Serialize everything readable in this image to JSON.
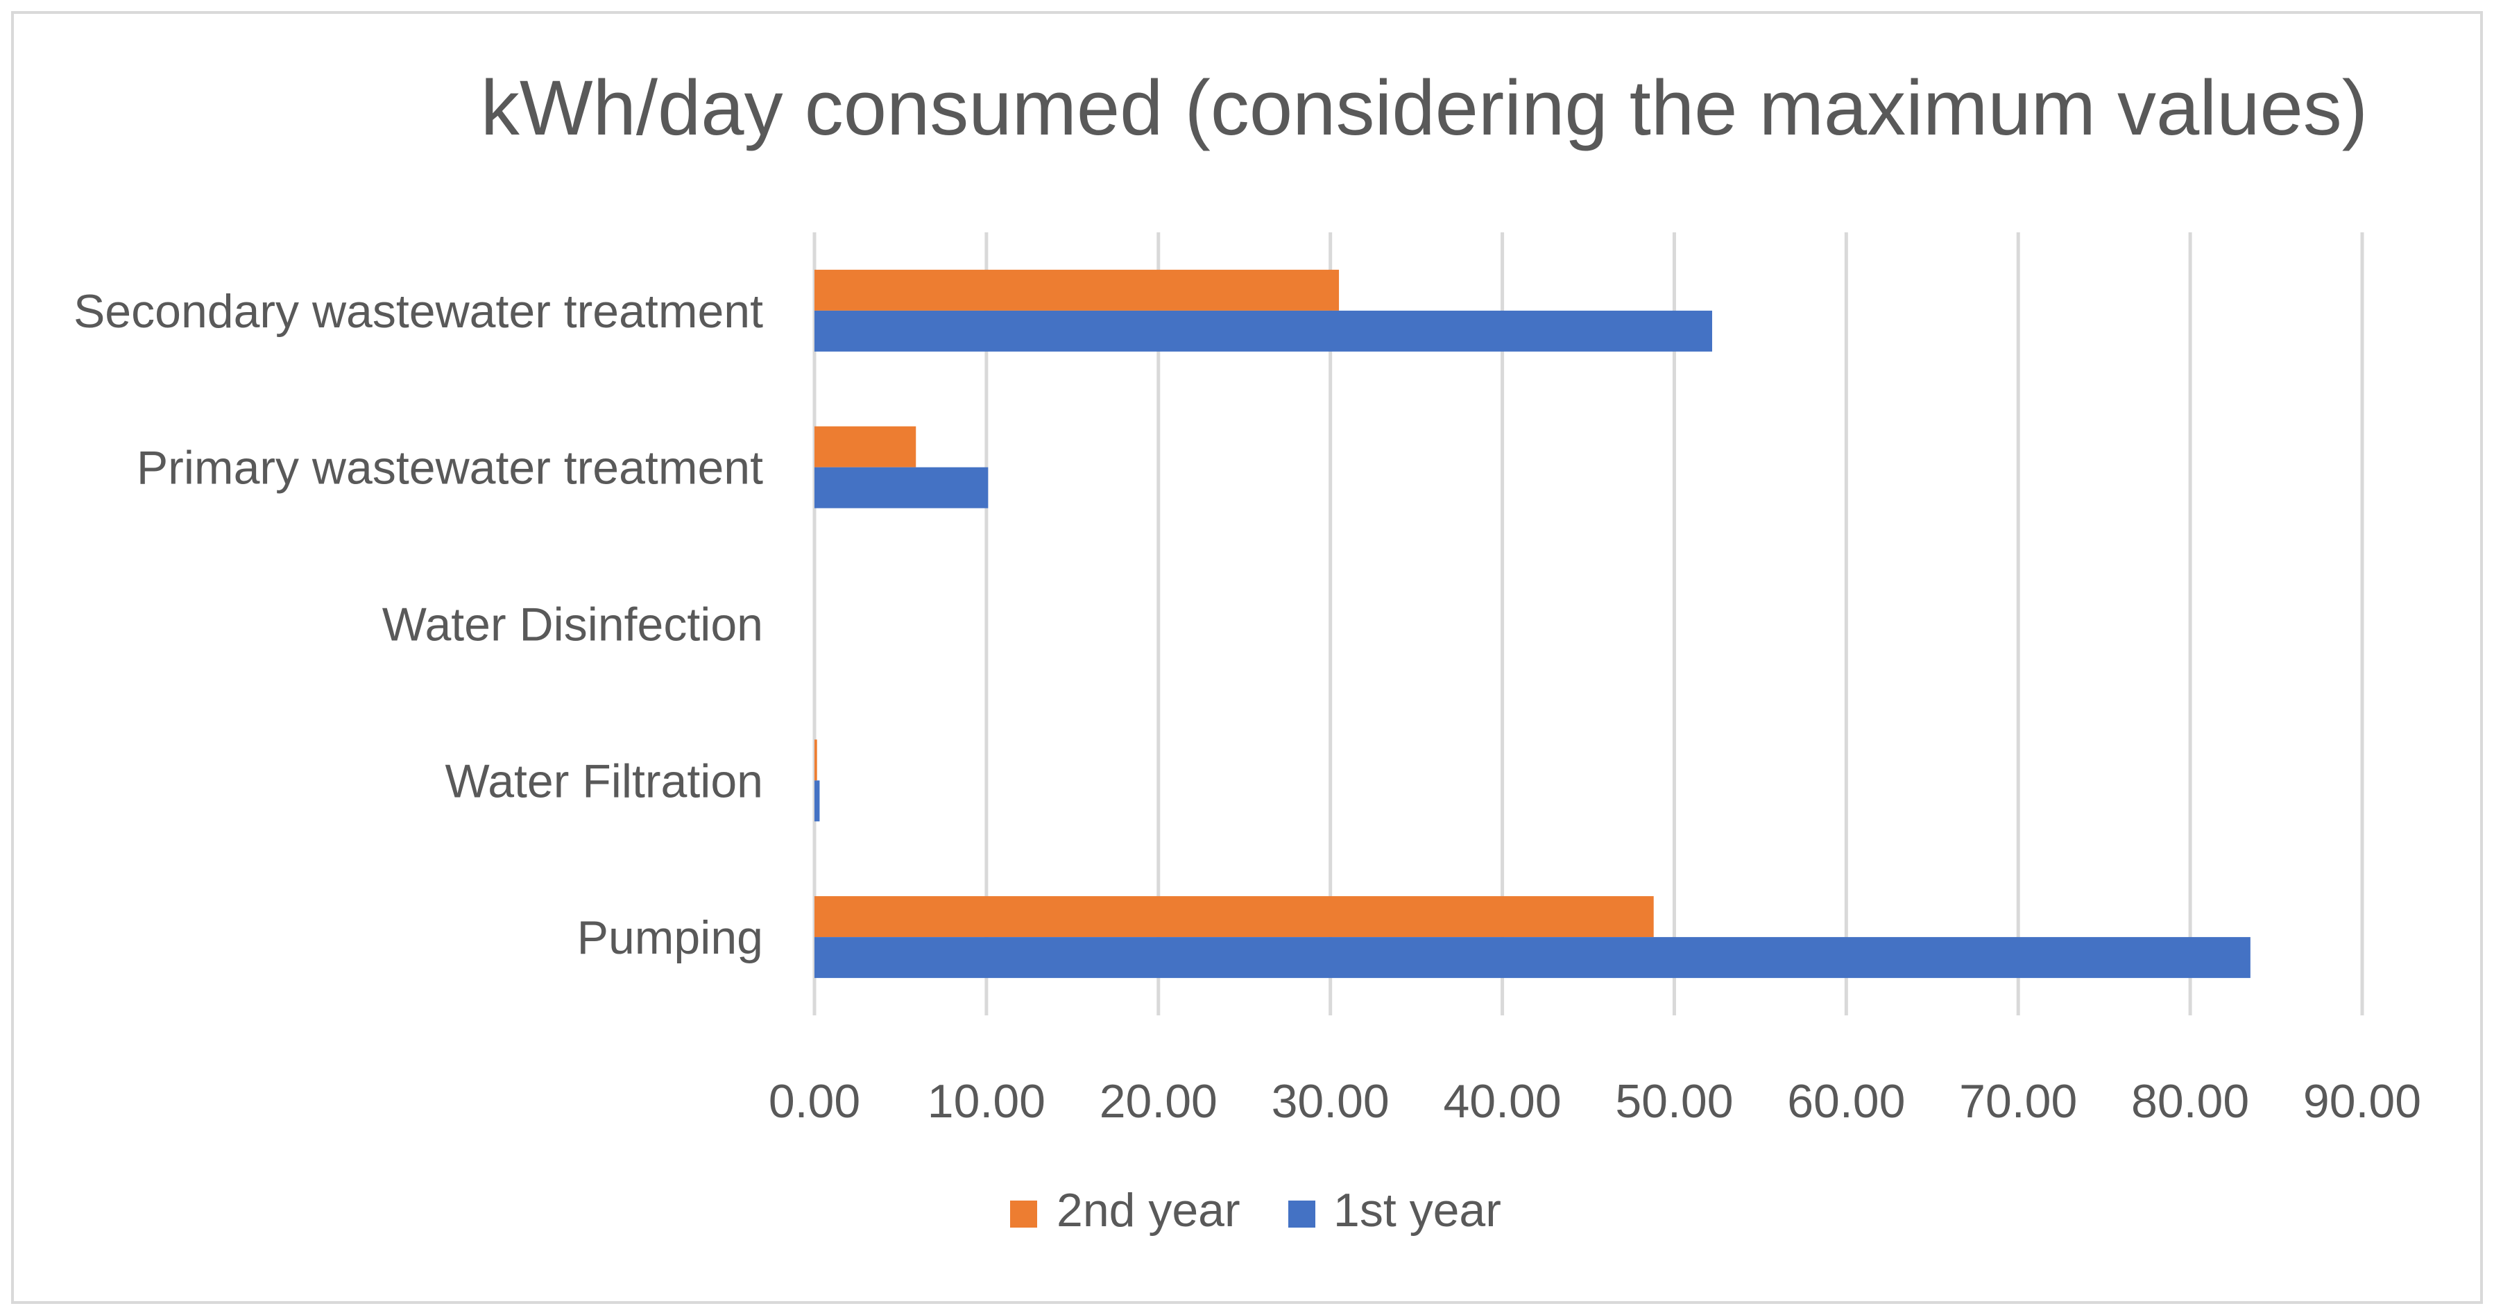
{
  "chart_data": {
    "type": "bar",
    "orientation": "horizontal",
    "title": "kWh/day consumed (considering the maximum values)",
    "xlabel": "",
    "ylabel": "",
    "xlim": [
      0,
      90
    ],
    "x_ticks": [
      0,
      10,
      20,
      30,
      40,
      50,
      60,
      70,
      80,
      90
    ],
    "x_tick_labels": [
      "0.00",
      "10.00",
      "20.00",
      "30.00",
      "40.00",
      "50.00",
      "60.00",
      "70.00",
      "80.00",
      "90.00"
    ],
    "grid": true,
    "legend_position": "bottom",
    "categories": [
      "Pumping",
      "Water Filtration",
      "Water Disinfection",
      "Primary wastewater treatment",
      "Secondary wastewater treatment"
    ],
    "series": [
      {
        "name": "2nd year",
        "color": "#ED7D31",
        "values": [
          48.8,
          0.15,
          0,
          5.9,
          30.5
        ]
      },
      {
        "name": "1st year",
        "color": "#4472C4",
        "values": [
          83.5,
          0.3,
          0,
          10.1,
          52.2
        ]
      }
    ],
    "legend": [
      "2nd year",
      "1st year"
    ]
  },
  "colors": {
    "grid": "#D9D9D9",
    "text": "#595959",
    "border": "#D9D9D9",
    "background": "#FFFFFF"
  }
}
